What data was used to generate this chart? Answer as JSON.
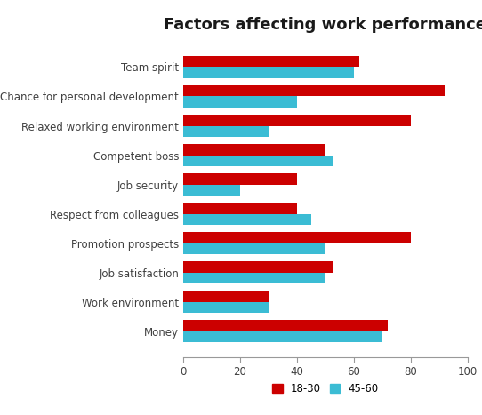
{
  "title": "Factors affecting work performance",
  "categories": [
    "Money",
    "Work environment",
    "Job satisfaction",
    "Promotion prospects",
    "Respect from colleagues",
    "Job security",
    "Competent boss",
    "Relaxed working environment",
    "Chance for personal development",
    "Team spirit"
  ],
  "values_18_30": [
    72,
    30,
    53,
    80,
    40,
    40,
    50,
    80,
    92,
    62
  ],
  "values_45_60": [
    70,
    30,
    50,
    50,
    45,
    20,
    53,
    30,
    40,
    60
  ],
  "color_18_30": "#CC0000",
  "color_45_60": "#3BBCD4",
  "xlim": [
    0,
    100
  ],
  "xticks": [
    0,
    20,
    40,
    60,
    80,
    100
  ],
  "legend_labels": [
    "18-30",
    "45-60"
  ],
  "title_fontsize": 13,
  "label_fontsize": 8.5,
  "tick_fontsize": 8.5,
  "bar_height": 0.38,
  "figsize": [
    5.42,
    4.67
  ],
  "dpi": 100
}
